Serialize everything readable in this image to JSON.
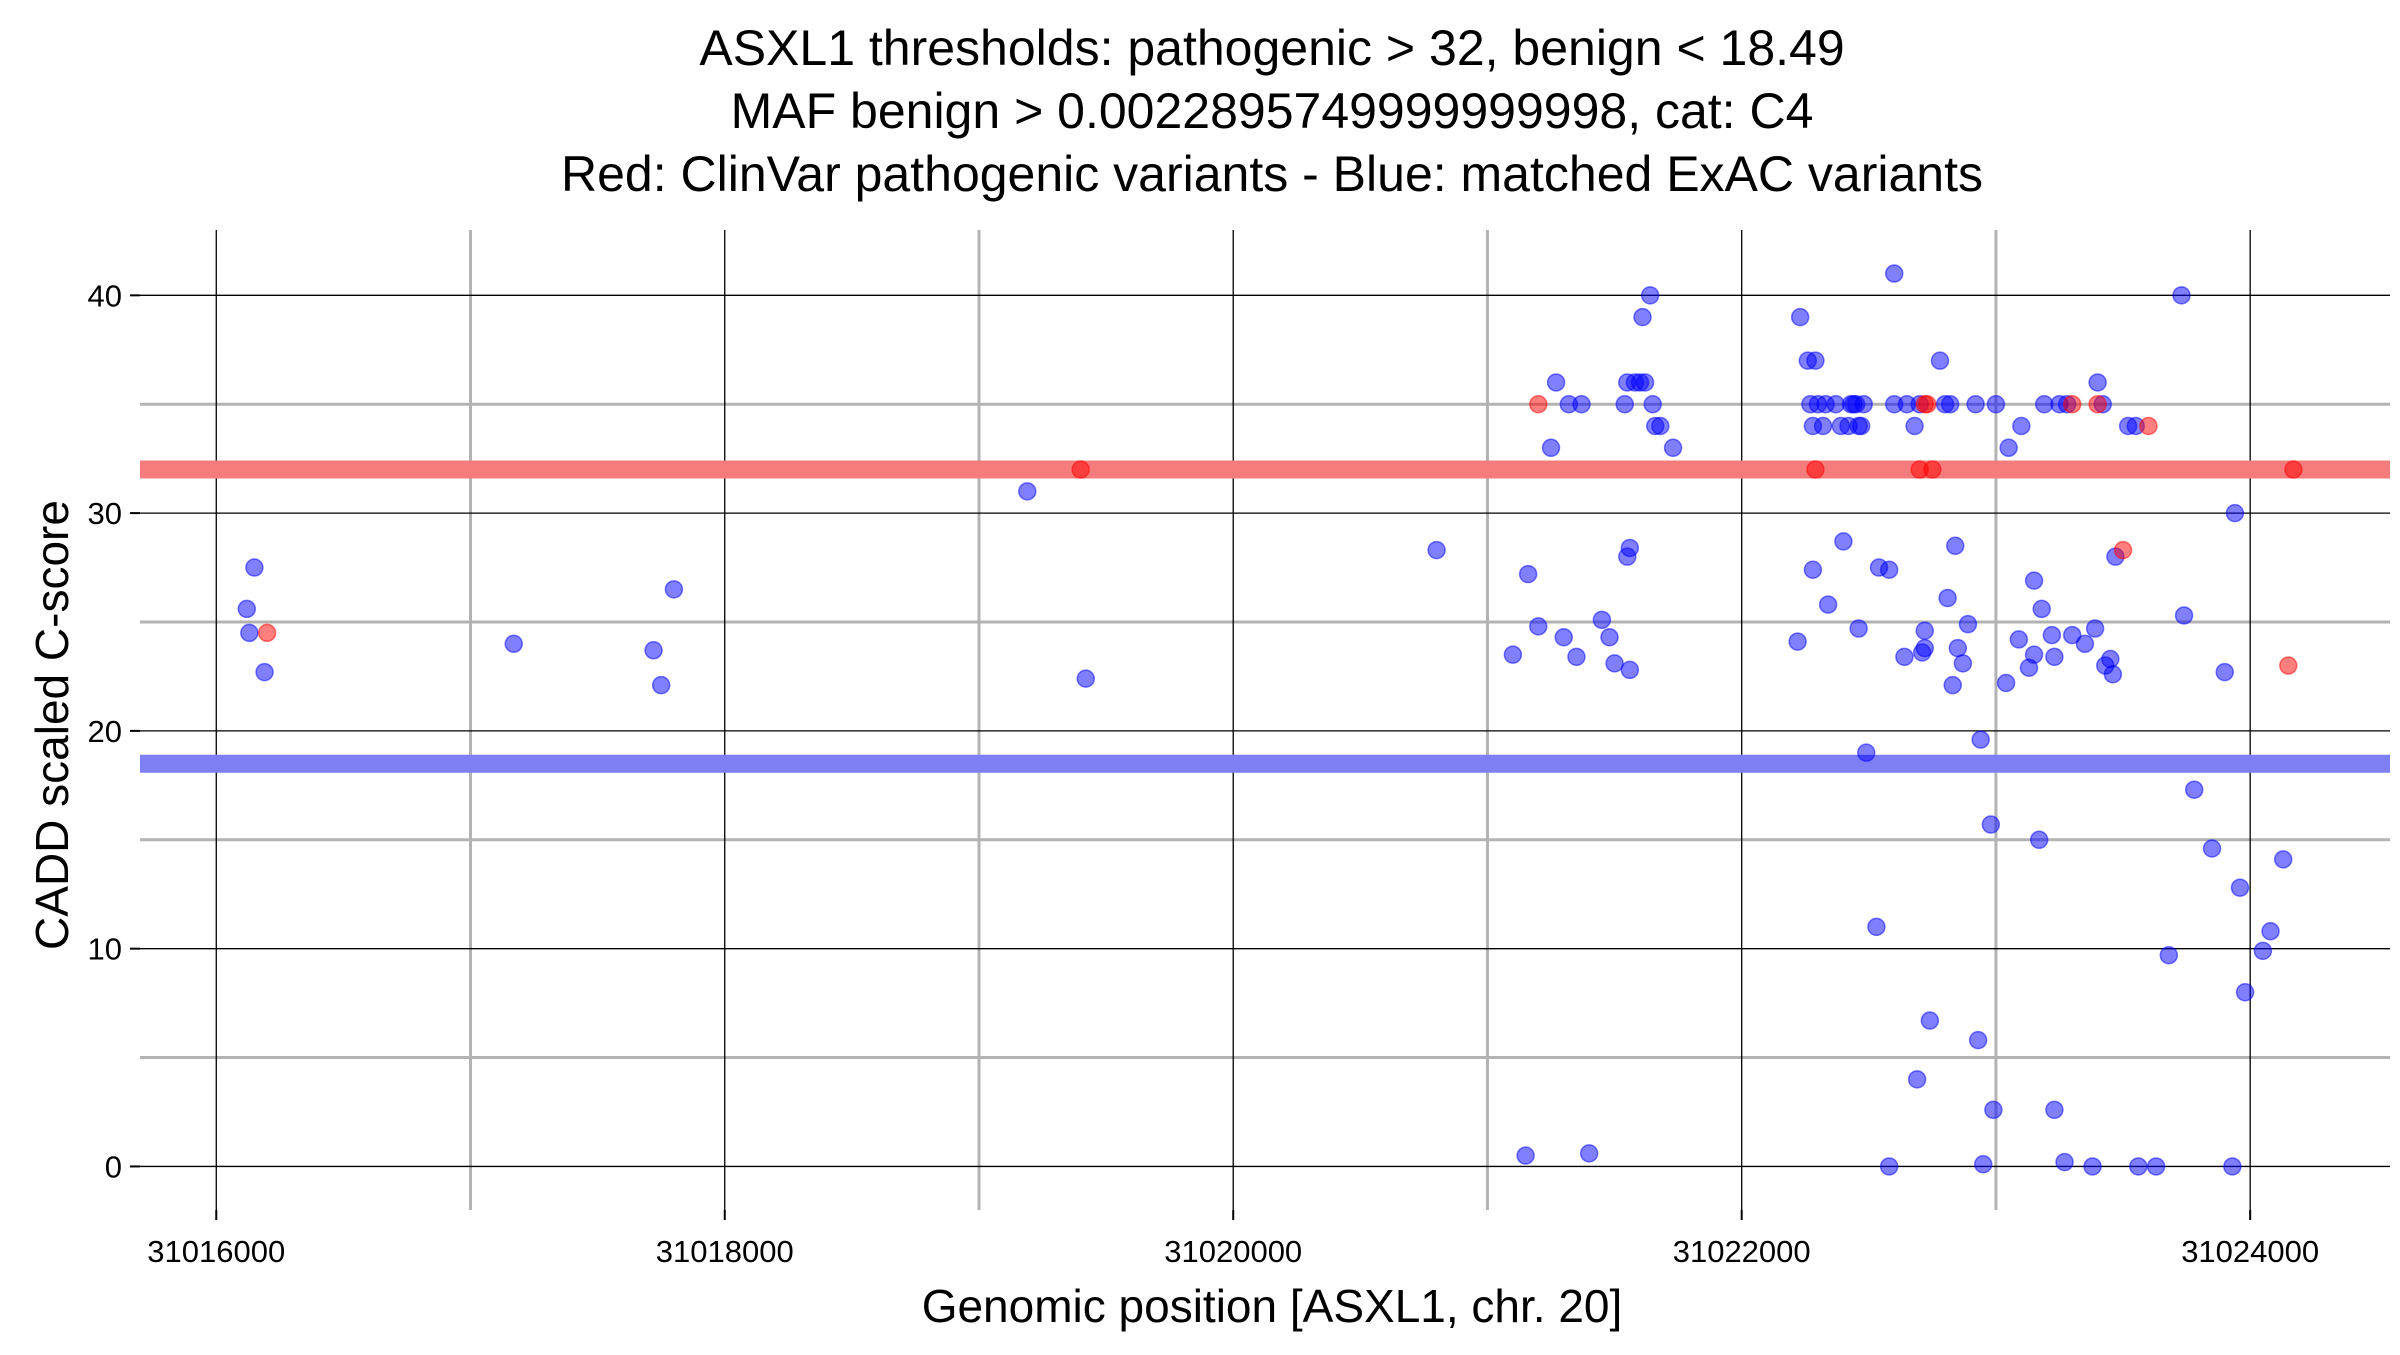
{
  "chart_data": {
    "type": "scatter",
    "title_lines": [
      "ASXL1 thresholds: pathogenic > 32, benign < 18.49",
      "MAF benign > 0.0022895749999999998, cat: C4",
      "Red: ClinVar pathogenic variants - Blue: matched ExAC variants"
    ],
    "xlabel": "Genomic position [ASXL1, chr. 20]",
    "ylabel": "CADD scaled C-score",
    "xlim": [
      31015700,
      31024550
    ],
    "ylim": [
      -2,
      43
    ],
    "x_major_ticks": [
      31016000,
      31018000,
      31020000,
      31022000,
      31024000
    ],
    "x_minor_ticks": [
      31017000,
      31019000,
      31021000,
      31023000
    ],
    "y_major_ticks": [
      0,
      10,
      20,
      30,
      40
    ],
    "y_minor_ticks": [
      5,
      15,
      25,
      35
    ],
    "grid": true,
    "thresholds": [
      {
        "name": "pathogenic",
        "value": 32,
        "color": "#f47c7c"
      },
      {
        "name": "benign",
        "value": 18.49,
        "color": "#7f7ff4"
      }
    ],
    "series": [
      {
        "name": "ClinVar pathogenic variants",
        "color": "#ff0000",
        "points": [
          [
            31016200,
            24.5
          ],
          [
            31019400,
            32
          ],
          [
            31021200,
            35
          ],
          [
            31022290,
            32
          ],
          [
            31022700,
            32
          ],
          [
            31022750,
            32
          ],
          [
            31022720,
            35
          ],
          [
            31022730,
            35
          ],
          [
            31023300,
            35
          ],
          [
            31023400,
            35
          ],
          [
            31023500,
            28.3
          ],
          [
            31023600,
            34
          ],
          [
            31024150,
            23
          ],
          [
            31024170,
            32
          ]
        ]
      },
      {
        "name": "matched ExAC variants",
        "color": "#0000ff",
        "points": [
          [
            31016120,
            25.6
          ],
          [
            31016130,
            24.5
          ],
          [
            31016150,
            27.5
          ],
          [
            31016190,
            22.7
          ],
          [
            31017170,
            24
          ],
          [
            31017720,
            23.7
          ],
          [
            31017750,
            22.1
          ],
          [
            31017800,
            26.5
          ],
          [
            31019190,
            31
          ],
          [
            31019420,
            22.4
          ],
          [
            31020800,
            28.3
          ],
          [
            31021100,
            23.5
          ],
          [
            31021150,
            0.5
          ],
          [
            31021160,
            27.2
          ],
          [
            31021200,
            24.8
          ],
          [
            31021250,
            33
          ],
          [
            31021270,
            36
          ],
          [
            31021300,
            24.3
          ],
          [
            31021320,
            35
          ],
          [
            31021350,
            23.4
          ],
          [
            31021370,
            35
          ],
          [
            31021400,
            0.6
          ],
          [
            31021450,
            25.1
          ],
          [
            31021480,
            24.3
          ],
          [
            31021500,
            23.1
          ],
          [
            31021540,
            35
          ],
          [
            31021550,
            28
          ],
          [
            31021560,
            22.8
          ],
          [
            31021560,
            28.4
          ],
          [
            31021550,
            36
          ],
          [
            31021580,
            36
          ],
          [
            31021600,
            36
          ],
          [
            31021610,
            39
          ],
          [
            31021620,
            36
          ],
          [
            31021640,
            40
          ],
          [
            31021650,
            35
          ],
          [
            31021660,
            34
          ],
          [
            31021680,
            34
          ],
          [
            31021730,
            33
          ],
          [
            31022220,
            24.1
          ],
          [
            31022230,
            39
          ],
          [
            31022260,
            37
          ],
          [
            31022270,
            35
          ],
          [
            31022280,
            27.4
          ],
          [
            31022280,
            34
          ],
          [
            31022290,
            37
          ],
          [
            31022300,
            35
          ],
          [
            31022320,
            34
          ],
          [
            31022330,
            35
          ],
          [
            31022340,
            25.8
          ],
          [
            31022370,
            35
          ],
          [
            31022390,
            34
          ],
          [
            31022400,
            28.7
          ],
          [
            31022420,
            34
          ],
          [
            31022430,
            35
          ],
          [
            31022440,
            35
          ],
          [
            31022450,
            35
          ],
          [
            31022460,
            34
          ],
          [
            31022470,
            34
          ],
          [
            31022460,
            24.7
          ],
          [
            31022480,
            35
          ],
          [
            31022490,
            19
          ],
          [
            31022530,
            11
          ],
          [
            31022540,
            27.5
          ],
          [
            31022580,
            27.4
          ],
          [
            31022580,
            0
          ],
          [
            31022600,
            35
          ],
          [
            31022600,
            41
          ],
          [
            31022640,
            23.4
          ],
          [
            31022650,
            35
          ],
          [
            31022680,
            34
          ],
          [
            31022690,
            4
          ],
          [
            31022700,
            35
          ],
          [
            31022710,
            23.6
          ],
          [
            31022720,
            23.8
          ],
          [
            31022720,
            24.6
          ],
          [
            31022740,
            6.7
          ],
          [
            31022780,
            37
          ],
          [
            31022800,
            35
          ],
          [
            31022810,
            26.1
          ],
          [
            31022820,
            35
          ],
          [
            31022830,
            22.1
          ],
          [
            31022840,
            28.5
          ],
          [
            31022850,
            23.8
          ],
          [
            31022870,
            23.1
          ],
          [
            31022890,
            24.9
          ],
          [
            31022920,
            35
          ],
          [
            31022930,
            5.8
          ],
          [
            31022940,
            19.6
          ],
          [
            31022950,
            0.1
          ],
          [
            31022980,
            15.7
          ],
          [
            31022990,
            2.6
          ],
          [
            31023000,
            35
          ],
          [
            31023040,
            22.2
          ],
          [
            31023050,
            33
          ],
          [
            31023090,
            24.2
          ],
          [
            31023100,
            34
          ],
          [
            31023130,
            22.9
          ],
          [
            31023150,
            23.5
          ],
          [
            31023150,
            26.9
          ],
          [
            31023170,
            15
          ],
          [
            31023180,
            25.6
          ],
          [
            31023190,
            35
          ],
          [
            31023220,
            24.4
          ],
          [
            31023230,
            23.4
          ],
          [
            31023230,
            2.6
          ],
          [
            31023250,
            35
          ],
          [
            31023270,
            0.2
          ],
          [
            31023280,
            35
          ],
          [
            31023300,
            24.4
          ],
          [
            31023350,
            24
          ],
          [
            31023380,
            0
          ],
          [
            31023390,
            24.7
          ],
          [
            31023400,
            36
          ],
          [
            31023420,
            35
          ],
          [
            31023430,
            23
          ],
          [
            31023450,
            23.3
          ],
          [
            31023460,
            22.6
          ],
          [
            31023470,
            28
          ],
          [
            31023520,
            34
          ],
          [
            31023550,
            34
          ],
          [
            31023560,
            0
          ],
          [
            31023630,
            0
          ],
          [
            31023680,
            9.7
          ],
          [
            31023730,
            40
          ],
          [
            31023740,
            25.3
          ],
          [
            31023780,
            17.3
          ],
          [
            31023850,
            14.6
          ],
          [
            31023900,
            22.7
          ],
          [
            31023930,
            0
          ],
          [
            31023940,
            30
          ],
          [
            31023960,
            12.8
          ],
          [
            31023980,
            8
          ],
          [
            31024050,
            9.9
          ],
          [
            31024080,
            10.8
          ],
          [
            31024130,
            14.1
          ]
        ]
      }
    ]
  }
}
